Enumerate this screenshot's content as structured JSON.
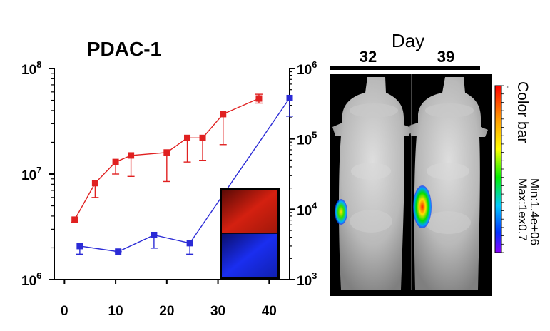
{
  "chart_data": {
    "type": "line",
    "title": "PDAC-1",
    "x_ticks": [
      "0",
      "10",
      "20",
      "30",
      "40"
    ],
    "xlim": [
      -2,
      44
    ],
    "left_axis": {
      "scale": "log",
      "ylim": [
        1000000,
        100000000
      ],
      "tick_bases": [
        "10",
        "10",
        "10"
      ],
      "tick_exponents": [
        "6",
        "7",
        "8"
      ]
    },
    "right_axis": {
      "scale": "log",
      "ylim": [
        1000,
        1000000
      ],
      "tick_bases": [
        "10",
        "10",
        "10",
        "10"
      ],
      "tick_exponents": [
        "3",
        "4",
        "5",
        "6"
      ]
    },
    "series": [
      {
        "color": "#e02020",
        "axis": "left",
        "x": [
          2,
          6,
          10,
          13,
          20,
          24,
          27,
          31,
          38
        ],
        "y": [
          3700000,
          8200000,
          13000000,
          15000000,
          16000000,
          22000000,
          22000000,
          37000000,
          52000000
        ],
        "err_lower": [
          3500000,
          6000000,
          10000000,
          9500000,
          8500000,
          13000000,
          13500000,
          19000000,
          47000000
        ],
        "err_upper": [
          3900000,
          8200000,
          13000000,
          15000000,
          16000000,
          22000000,
          22000000,
          37000000,
          57000000
        ],
        "err_upper_cap": [
          false,
          false,
          false,
          false,
          false,
          false,
          false,
          false,
          true
        ]
      },
      {
        "color": "#2b2bd6",
        "axis": "right",
        "x": [
          3,
          10.5,
          17.5,
          24.5,
          44
        ],
        "y": [
          3000,
          2500,
          4300,
          3300,
          380000
        ],
        "err_lower": [
          2300,
          2500,
          2800,
          2300,
          210000
        ],
        "err_upper": [
          3000,
          2500,
          4300,
          3300,
          380000
        ]
      }
    ],
    "inset_colors": [
      "#d42010",
      "#1a2ef0"
    ],
    "imaging": {
      "header": "Day",
      "days": [
        "32",
        "39"
      ],
      "colorbar_title": "Color bar",
      "colorbar_min": "Min:1.4e+06",
      "colorbar_max": "Max:1ex0.7",
      "colorbar_tick": "10"
    }
  }
}
